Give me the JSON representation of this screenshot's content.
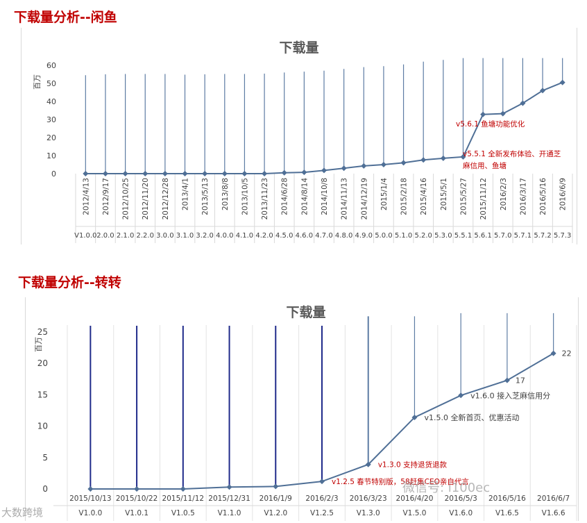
{
  "section1": {
    "heading": "下载量分析--闲鱼"
  },
  "section2": {
    "heading": "下载量分析--转转"
  },
  "watermarks": {
    "wechat": "微信号: i100ec",
    "site": "大数跨境"
  },
  "colors": {
    "line": "#4f6f96",
    "marker": "#4f6f96",
    "spike1": "#5c7ba3",
    "spike2": "#1f2a8a",
    "heading": "#c00000"
  },
  "chart_data": [
    {
      "type": "line",
      "title": "下载量",
      "ylabel": "百万",
      "ylim": [
        0,
        60
      ],
      "yticks": [
        0,
        10,
        20,
        30,
        40,
        50,
        60
      ],
      "grid": "vertical",
      "categories": [
        "2012/4/13",
        "2012/9/17",
        "2012/10/25",
        "2012/11/20",
        "2012/12/28",
        "2013/4/1",
        "2013/5/13",
        "2013/8/8",
        "2013/10/5",
        "2013/11/23",
        "2014/6/28",
        "2014/8/14",
        "2014/10/8",
        "2014/11/13",
        "2014/12/19",
        "2015/1/4",
        "2015/2/18",
        "2015/4/16",
        "2015/5/1",
        "2015/5/27",
        "2015/11/12",
        "2016/2/3",
        "2016/3/17",
        "2016/5/16",
        "2016/6/9"
      ],
      "versions": [
        "V1.0.0",
        "V2.0.0",
        "V2.1.0",
        "V2.2.0",
        "V3.0.0",
        "V3.1.0",
        "V3.2.0",
        "V4.0.0",
        "V4.1.0",
        "V4.2.0",
        "V4.5.0",
        "V4.6.0",
        "V4.7.0",
        "V4.8.0",
        "V4.9.0",
        "V5.0.0",
        "V5.1.0",
        "V5.2.0",
        "V5.3.0",
        "V5.5.1",
        "V5.6.1",
        "V5.7.0",
        "V5.7.1",
        "V5.7.2",
        "V5.7.3"
      ],
      "version_labels": [
        "V1.0.0",
        "V2.0.0",
        "V2.1.0",
        "V2.2.0",
        "V3.0.0",
        "V3.1.0",
        "V3.2.0",
        "V4.0.0",
        "V4.1.0",
        "V4.2.0",
        "V4.5.0",
        "V4.6.0",
        "V4.7.0",
        "V4.8.0",
        "V4.9.0",
        "V5.0.0",
        "V5.1.0",
        "V5.2.0",
        "V5.3.0",
        "V5.5.1",
        "V5.6.1",
        "V5.7.0",
        "V5.7.1",
        "V5.7.2",
        "V5.7.3"
      ],
      "version_visible": [
        "V1.0.0",
        "2.0.0",
        "2.1.0",
        "2.2.0",
        "3.0.0",
        "3.1.0",
        "3.2.0",
        "4.0.0",
        "4.1.0",
        "4.2.0",
        "4.5.0",
        "4.6.0",
        "4.7.0",
        "4.8.0",
        "4.9.0",
        "5.0.0",
        "5.1.0",
        "5.2.0",
        "5.3.0",
        "5.5.1",
        "5.6.1",
        "5.7.0",
        "5.7.1",
        "5.7.2",
        "5.7.3"
      ],
      "values": [
        0,
        0,
        0,
        0,
        0,
        0,
        0,
        0,
        0,
        0,
        0.5,
        0.7,
        1.8,
        3.0,
        4.3,
        5.0,
        6.0,
        7.6,
        8.5,
        9.3,
        32.8,
        33.2,
        39.0,
        46.0,
        50.5
      ],
      "spike_tops": [
        54.5,
        55.0,
        55.2,
        55.2,
        55.2,
        54.8,
        55.0,
        55.2,
        55.2,
        55.4,
        56.0,
        56.5,
        57.0,
        58.0,
        59.0,
        59.5,
        60.5,
        62.0,
        63.0,
        64.0,
        64.0,
        64.0,
        64.0,
        64.0,
        64.0
      ],
      "annotations": [
        {
          "index": 20,
          "text": "v5.6.1 鱼塘功能优化"
        },
        {
          "index": 19,
          "text": "v5.5.1 全新发布体验、开通芝",
          "text2": "麻信用、鱼塘"
        }
      ]
    },
    {
      "type": "line",
      "title": "下载量",
      "ylabel": "百万",
      "ylim": [
        0,
        25
      ],
      "yticks": [
        0,
        5,
        10,
        15,
        20,
        25
      ],
      "grid": "vertical",
      "categories": [
        "2015/10/13",
        "2015/10/22",
        "2015/11/12",
        "2015/12/31",
        "2016/1/9",
        "2016/2/3",
        "2016/3/23",
        "2016/4/20",
        "2016/5/3",
        "2016/5/16",
        "2016/6/7"
      ],
      "version_labels": [
        "V1.0.0",
        "V1.0.1",
        "V1.0.5",
        "V1.1.0",
        "V1.2.0",
        "V1.2.5",
        "V1.3.0",
        "V1.5.0",
        "V1.6.0",
        "V1.6.5",
        "V1.6.6"
      ],
      "values": [
        0,
        0,
        0,
        0.3,
        0.4,
        1.2,
        3.9,
        11.4,
        14.9,
        17.3,
        21.6
      ],
      "value_labels": {
        "9": "17",
        "10": "22"
      },
      "spike_tops": [
        26.0,
        26.0,
        26.0,
        26.0,
        26.0,
        26.0,
        27.5,
        27.5,
        28.0,
        28.0,
        28.0
      ],
      "annotations": [
        {
          "index": 5,
          "text": "v1.2.5  春节特别版，58赶集CEO亲自代言",
          "color": "red"
        },
        {
          "index": 6,
          "text": "v1.3.0  支持退货退款",
          "color": "red"
        },
        {
          "index": 7,
          "text": "v1.5.0  全新首页、优惠活动",
          "color": "gray"
        },
        {
          "index": 8,
          "text": "v1.6.0  接入芝麻信用分",
          "color": "gray"
        }
      ]
    }
  ]
}
